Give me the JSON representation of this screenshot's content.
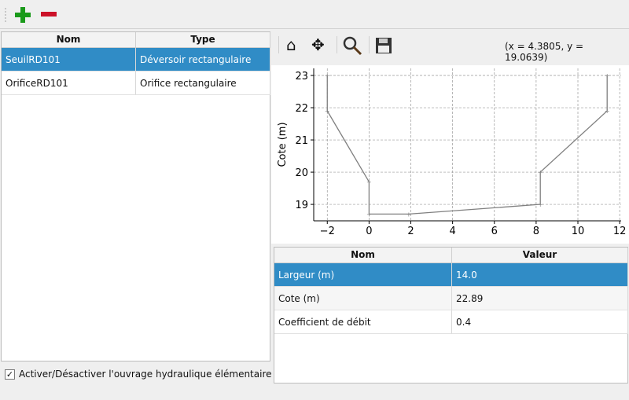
{
  "toolbar": {
    "add_icon": "plus-icon",
    "remove_icon": "minus-icon"
  },
  "structures_table": {
    "headers": [
      "Nom",
      "Type"
    ],
    "rows": [
      {
        "nom": "SeuilRD101",
        "type": "Déversoir rectangulaire",
        "selected": true
      },
      {
        "nom": "OrificeRD101",
        "type": "Orifice rectangulaire",
        "selected": false
      }
    ]
  },
  "toggle": {
    "label": "Activer/Désactiver l'ouvrage hydraulique élémentaire",
    "checked": true
  },
  "plot_toolbar": {
    "icons": [
      "home-icon",
      "pan-icon",
      "zoom-icon",
      "save-icon"
    ],
    "coords": "(x = 4.3805,   y = 19.0639)"
  },
  "chart_data": {
    "type": "line",
    "ylabel": "Cote (m)",
    "xlabel": "",
    "x": [
      -2,
      -2,
      0,
      0,
      1.9,
      8.2,
      8.2,
      11.4,
      11.4
    ],
    "y": [
      23,
      21.9,
      19.7,
      18.7,
      18.7,
      19.0,
      20.0,
      21.9,
      23
    ],
    "xlim": [
      -2.65,
      12.07
    ],
    "ylim": [
      18.49,
      23.22
    ],
    "xticks": [
      "−2",
      "0",
      "2",
      "4",
      "6",
      "8",
      "10",
      "12"
    ],
    "xtick_values": [
      -2,
      0,
      2,
      4,
      6,
      8,
      10,
      12
    ],
    "yticks": [
      "19",
      "20",
      "21",
      "22",
      "23"
    ],
    "ytick_values": [
      19,
      20,
      21,
      22,
      23
    ],
    "grid": true,
    "line_color": "#808080"
  },
  "params_table": {
    "headers": [
      "Nom",
      "Valeur"
    ],
    "rows": [
      {
        "nom": "Largeur (m)",
        "valeur": "14.0",
        "selected": true
      },
      {
        "nom": "Cote (m)",
        "valeur": "22.89",
        "selected": false
      },
      {
        "nom": "Coefficient de débit",
        "valeur": "0.4",
        "selected": false
      }
    ]
  }
}
